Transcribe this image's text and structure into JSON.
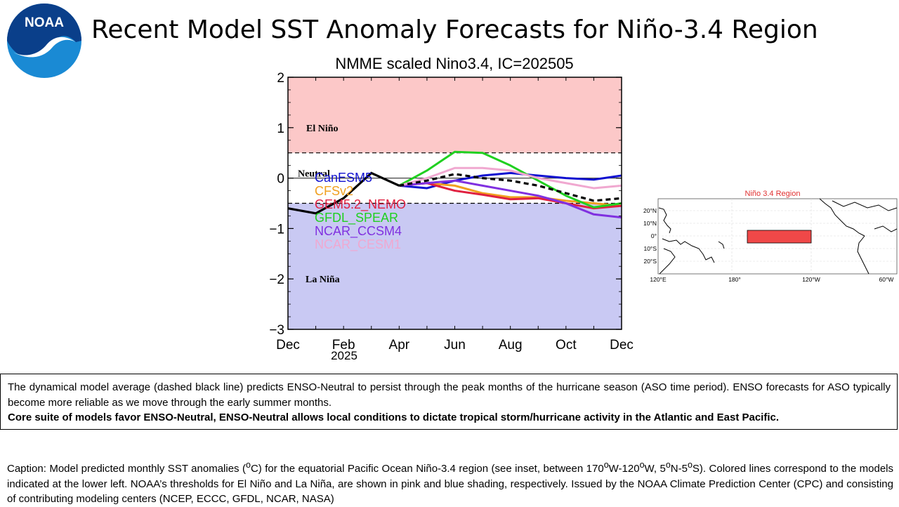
{
  "header": {
    "logo_text": "NOAA",
    "title": "Recent Model SST Anomaly Forecasts for Niño-3.4 Region"
  },
  "chart_data": [
    {
      "type": "line",
      "title": "NMME scaled Nino3.4, IC=202505",
      "ylim": [
        -3,
        2
      ],
      "yticks": [
        2,
        1,
        0,
        -1,
        -2,
        -3
      ],
      "ytick_labels": [
        "2",
        "1",
        "0",
        "−1",
        "−2",
        "−3"
      ],
      "xticks": [
        "Dec",
        "Feb",
        "Apr",
        "Jun",
        "Aug",
        "Oct",
        "Dec"
      ],
      "xtick_positions": [
        0,
        2,
        4,
        6,
        8,
        10,
        12
      ],
      "xlim": [
        0,
        12
      ],
      "year_label": "2025",
      "grid": false,
      "thresholds": [
        0.5,
        -0.5
      ],
      "regions": [
        {
          "label": "El Niño",
          "from": 0.5,
          "to": 2,
          "color": "#fcc8c8"
        },
        {
          "label": "Neutral",
          "from": -0.5,
          "to": 0.5,
          "color": "#ffffff"
        },
        {
          "label": "La Niña",
          "from": -3,
          "to": -0.5,
          "color": "#c9c9f3"
        }
      ],
      "legend_position": "lower-left",
      "observed": {
        "x": [
          0,
          1,
          2,
          3,
          4
        ],
        "values": [
          -0.6,
          -0.7,
          -0.4,
          0.1,
          -0.15
        ],
        "color": "#000000"
      },
      "ensemble_mean": {
        "x": [
          4,
          5,
          6,
          7,
          8,
          9,
          10,
          11,
          12
        ],
        "values": [
          -0.15,
          -0.05,
          0.08,
          0.0,
          -0.05,
          -0.15,
          -0.3,
          -0.45,
          -0.4
        ],
        "color": "#000000"
      },
      "series": [
        {
          "name": "CanESM5",
          "color": "#1010d0",
          "x": [
            4,
            5,
            6,
            7,
            8,
            9,
            10,
            11,
            12
          ],
          "values": [
            -0.15,
            -0.2,
            -0.05,
            0.05,
            0.1,
            0.05,
            0.0,
            -0.03,
            0.05
          ]
        },
        {
          "name": "CFSv2",
          "color": "#f0a020",
          "x": [
            4,
            5,
            6,
            7,
            8,
            9,
            10,
            11,
            12
          ],
          "values": [
            -0.15,
            -0.1,
            -0.15,
            -0.3,
            -0.38,
            -0.38,
            -0.45,
            -0.5,
            -0.55
          ]
        },
        {
          "name": "GEM5.2_NEMO",
          "color": "#e02040",
          "x": [
            4,
            5,
            6,
            7,
            8,
            9,
            10,
            11,
            12
          ],
          "values": [
            -0.15,
            -0.1,
            -0.25,
            -0.33,
            -0.42,
            -0.4,
            -0.5,
            -0.6,
            -0.55
          ]
        },
        {
          "name": "GFDL_SPEAR",
          "color": "#20d020",
          "x": [
            4,
            5,
            6,
            7,
            8,
            9,
            10,
            11,
            12
          ],
          "values": [
            -0.15,
            0.15,
            0.52,
            0.5,
            0.25,
            -0.05,
            -0.35,
            -0.58,
            -0.5
          ]
        },
        {
          "name": "NCAR_CCSM4",
          "color": "#8030e0",
          "x": [
            4,
            5,
            6,
            7,
            8,
            9,
            10,
            11,
            12
          ],
          "values": [
            -0.15,
            -0.1,
            -0.05,
            -0.15,
            -0.25,
            -0.35,
            -0.5,
            -0.72,
            -0.78
          ]
        },
        {
          "name": "NCAR_CESM1",
          "color": "#f0a8d0",
          "x": [
            4,
            5,
            6,
            7,
            8,
            9,
            10,
            11,
            12
          ],
          "values": [
            -0.15,
            0.0,
            0.2,
            0.2,
            0.15,
            0.0,
            -0.1,
            -0.2,
            -0.15
          ]
        }
      ]
    },
    {
      "type": "map",
      "title": "Niño 3.4 Region",
      "lat_labels": [
        "20°N",
        "10°N",
        "0°",
        "10°S",
        "20°S"
      ],
      "lon_labels": [
        "120°E",
        "180°",
        "120°W",
        "60°W"
      ],
      "box": {
        "lon_from": "170°W",
        "lon_to": "120°W",
        "lat_from": "5°N",
        "lat_to": "5°S",
        "color": "#f04848"
      }
    }
  ],
  "summary": {
    "text": "The dynamical model average (dashed black line) predicts ENSO-Neutral to persist through the peak months of the hurricane season (ASO time period). ENSO forecasts for ASO typically become more reliable as we move through the early summer months.",
    "bold_text": "Core suite of models favor ENSO-Neutral, ENSO-Neutral allows local conditions to dictate tropical storm/hurricane activity in the Atlantic and East Pacific."
  },
  "caption": {
    "text_before_super": "Caption: Model predicted monthly SST anomalies (",
    "super": "o",
    "text_after_super": "C) for the equatorial Pacific Ocean Niño-3.4 region (see inset, between 170",
    "super2": "o",
    "text_mid1": "W-120",
    "super3": "o",
    "text_mid2": "W, 5",
    "super4": "o",
    "text_mid3": "N-5",
    "super5": "o",
    "text_end": "S). Colored lines correspond to the models indicated at the lower left. NOAA’s thresholds for El Niño and La Niña, are shown in pink and blue shading, respectively. Issued by the NOAA Climate Prediction Center (CPC) and consisting of contributing modeling centers (NCEP, ECCC, GFDL, NCAR, NASA)"
  }
}
